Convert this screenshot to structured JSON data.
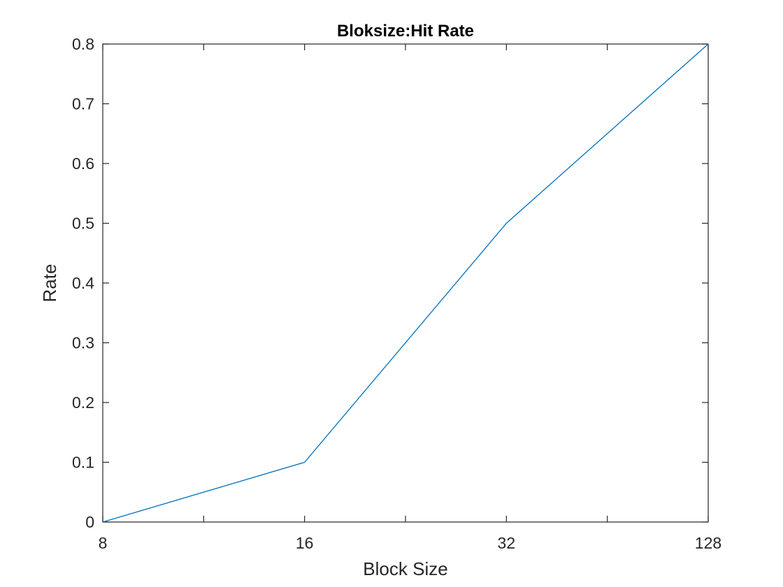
{
  "chart_data": {
    "type": "line",
    "title": "Bloksize:Hit Rate",
    "xlabel": "Block Size",
    "ylabel": "Rate",
    "categories": [
      "8",
      "16",
      "32",
      "128"
    ],
    "series": [
      {
        "values": [
          0,
          0.1,
          0.5,
          0.8
        ],
        "color": "#0072BD"
      }
    ],
    "ylim": [
      0,
      0.8
    ],
    "yticks": [
      "0",
      "0.1",
      "0.2",
      "0.3",
      "0.4",
      "0.5",
      "0.6",
      "0.7",
      "0.8"
    ],
    "grid": false,
    "legend": "none"
  }
}
